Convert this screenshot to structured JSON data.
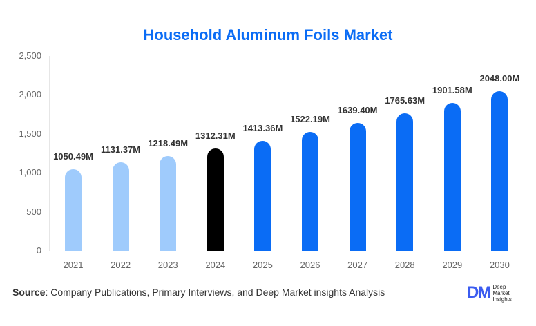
{
  "title": "Household Aluminum Foils Market",
  "chart_data": {
    "type": "bar",
    "title": "Household Aluminum Foils Market",
    "xlabel": "",
    "ylabel": "",
    "ylim": [
      0,
      2500
    ],
    "yticks": [
      0,
      500,
      1000,
      1500,
      2000,
      2500
    ],
    "ytick_labels": [
      "0",
      "500",
      "1,000",
      "1,500",
      "2,000",
      "2,500"
    ],
    "grid": false,
    "legend": null,
    "categories": [
      "2021",
      "2022",
      "2023",
      "2024",
      "2025",
      "2026",
      "2027",
      "2028",
      "2029",
      "2030"
    ],
    "values": [
      1050.49,
      1131.37,
      1218.49,
      1312.31,
      1413.36,
      1522.19,
      1639.4,
      1765.63,
      1901.58,
      2048.0
    ],
    "value_labels": [
      "1050.49M",
      "1131.37M",
      "1218.49M",
      "1312.31M",
      "1413.36M",
      "1522.19M",
      "1639.40M",
      "1765.63M",
      "1901.58M",
      "2048.00M"
    ],
    "bar_colors": [
      "#9fcbfc",
      "#9fcbfc",
      "#9fcbfc",
      "#000000",
      "#0a6cf5",
      "#0a6cf5",
      "#0a6cf5",
      "#0a6cf5",
      "#0a6cf5",
      "#0a6cf5"
    ],
    "unit": "M"
  },
  "source": {
    "label": "Source",
    "text": ": Company Publications, Primary Interviews, and Deep Market insights Analysis"
  },
  "logo": {
    "mark": "DM",
    "lines": [
      "Deep",
      "Market",
      "Insights"
    ]
  },
  "colors": {
    "title": "#0a6cf5",
    "historical": "#9fcbfc",
    "current": "#000000",
    "forecast": "#0a6cf5"
  }
}
